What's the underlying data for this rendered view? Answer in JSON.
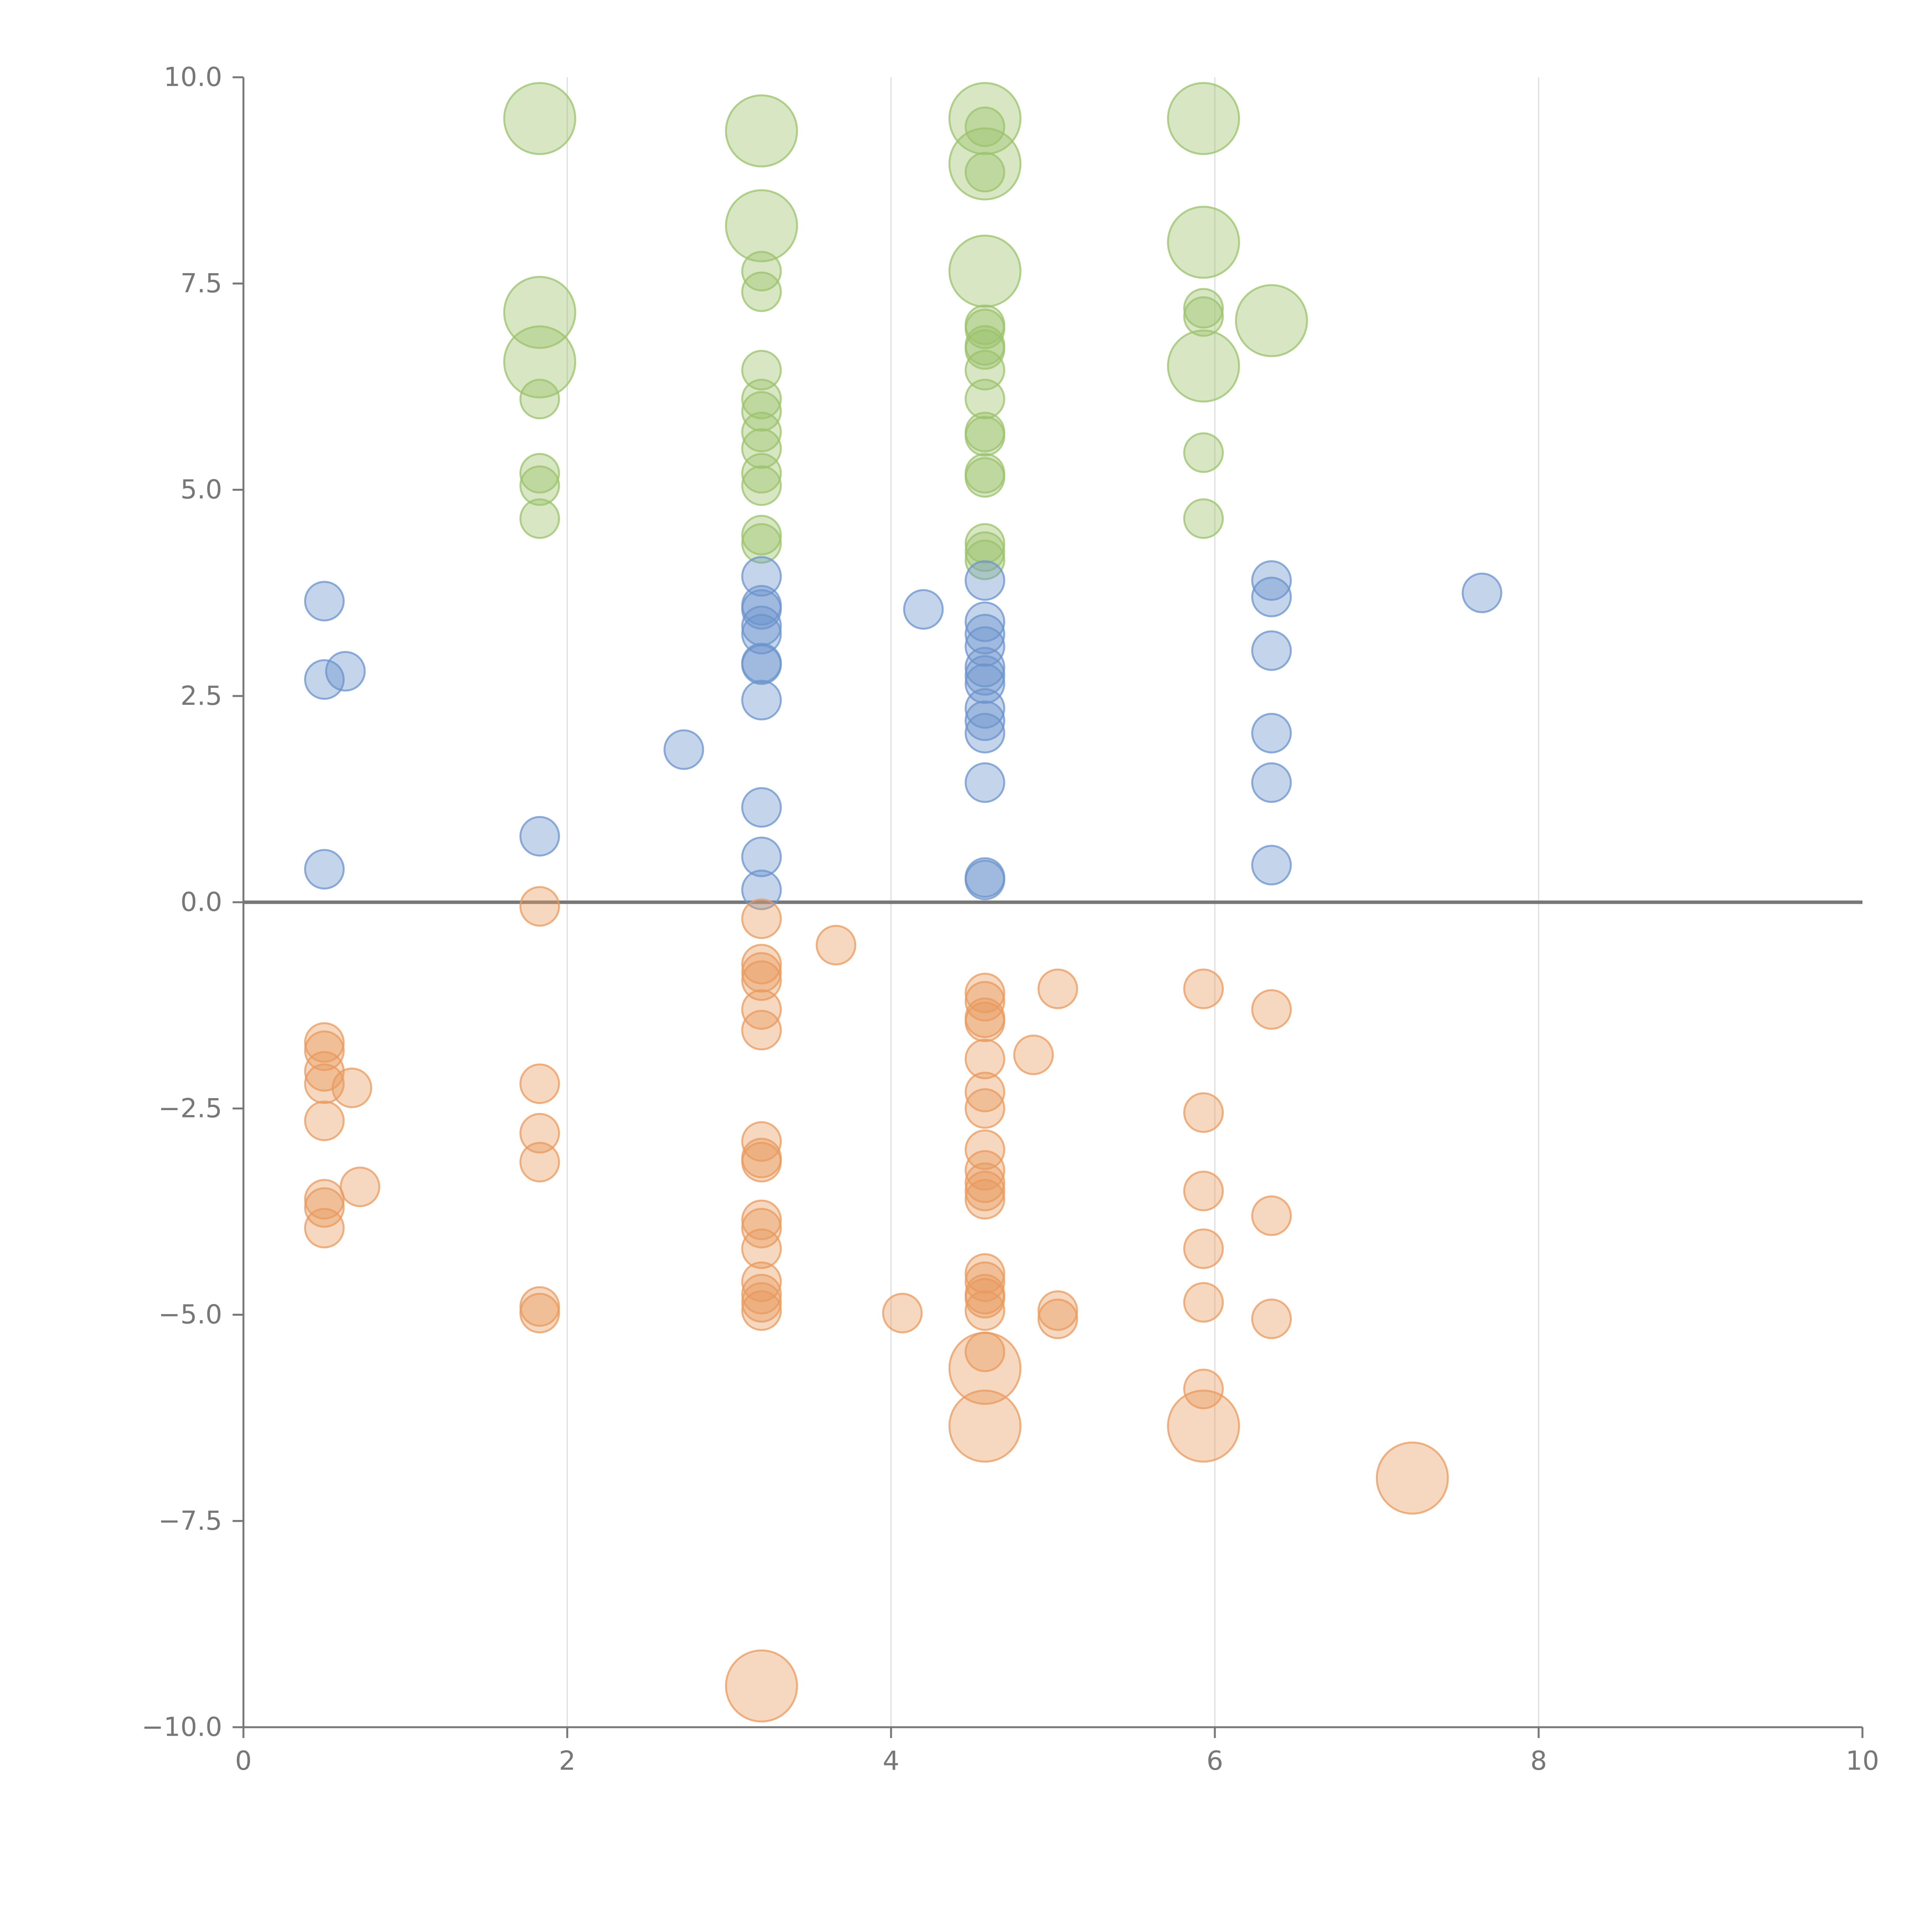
{
  "colors": {
    "green": "#9bc26b",
    "blue": "#6b93cc",
    "orange": "#e99a5e",
    "axis": "#777777",
    "grid": "#dddddd"
  },
  "chart_data": {
    "type": "scatter",
    "title": "",
    "xlabel": "",
    "ylabel": "",
    "xlim": [
      0,
      10
    ],
    "ylim": [
      -10,
      10
    ],
    "xticks": [
      0,
      2,
      4,
      6,
      8,
      10
    ],
    "yticks": [
      10.0,
      7.5,
      5.0,
      2.5,
      0.0,
      -2.5,
      -5.0,
      -7.5,
      -10.0
    ],
    "xtick_labels": [
      "0",
      "2",
      "4",
      "6",
      "8",
      "10"
    ],
    "ytick_labels": [
      "10.0",
      "7.5",
      "5.0",
      "2.5",
      "0.0",
      "−2.5",
      "−5.0",
      "−7.5",
      "−10.0"
    ],
    "grid_x": [
      2,
      4,
      6,
      8
    ],
    "zero_line": 0,
    "series": [
      {
        "name": "green",
        "color_key": "green",
        "points": [
          {
            "x": 1.83,
            "y": 9.5,
            "size": "large"
          },
          {
            "x": 1.83,
            "y": 7.15,
            "size": "large"
          },
          {
            "x": 1.83,
            "y": 6.55,
            "size": "large"
          },
          {
            "x": 1.83,
            "y": 6.1,
            "size": "small"
          },
          {
            "x": 1.83,
            "y": 5.2,
            "size": "small"
          },
          {
            "x": 1.83,
            "y": 5.05,
            "size": "small"
          },
          {
            "x": 1.83,
            "y": 4.65,
            "size": "small"
          },
          {
            "x": 3.2,
            "y": 9.35,
            "size": "large"
          },
          {
            "x": 3.2,
            "y": 8.2,
            "size": "large"
          },
          {
            "x": 3.2,
            "y": 7.65,
            "size": "small"
          },
          {
            "x": 3.2,
            "y": 7.4,
            "size": "small"
          },
          {
            "x": 3.2,
            "y": 6.45,
            "size": "small"
          },
          {
            "x": 3.2,
            "y": 6.1,
            "size": "small"
          },
          {
            "x": 3.2,
            "y": 5.95,
            "size": "small"
          },
          {
            "x": 3.2,
            "y": 5.7,
            "size": "small"
          },
          {
            "x": 3.2,
            "y": 5.5,
            "size": "small"
          },
          {
            "x": 3.2,
            "y": 5.2,
            "size": "small"
          },
          {
            "x": 3.2,
            "y": 5.05,
            "size": "small"
          },
          {
            "x": 3.2,
            "y": 4.45,
            "size": "small"
          },
          {
            "x": 3.2,
            "y": 4.35,
            "size": "small"
          },
          {
            "x": 4.58,
            "y": 9.5,
            "size": "large"
          },
          {
            "x": 4.58,
            "y": 9.4,
            "size": "small"
          },
          {
            "x": 4.58,
            "y": 8.95,
            "size": "large"
          },
          {
            "x": 4.58,
            "y": 8.85,
            "size": "small"
          },
          {
            "x": 4.58,
            "y": 7.65,
            "size": "large"
          },
          {
            "x": 4.58,
            "y": 7.0,
            "size": "small"
          },
          {
            "x": 4.58,
            "y": 6.95,
            "size": "small"
          },
          {
            "x": 4.58,
            "y": 6.75,
            "size": "small"
          },
          {
            "x": 4.58,
            "y": 6.7,
            "size": "small"
          },
          {
            "x": 4.58,
            "y": 6.45,
            "size": "small"
          },
          {
            "x": 4.58,
            "y": 6.1,
            "size": "small"
          },
          {
            "x": 4.58,
            "y": 5.7,
            "size": "small"
          },
          {
            "x": 4.58,
            "y": 5.65,
            "size": "small"
          },
          {
            "x": 4.58,
            "y": 5.2,
            "size": "small"
          },
          {
            "x": 4.58,
            "y": 5.15,
            "size": "small"
          },
          {
            "x": 4.58,
            "y": 4.35,
            "size": "small"
          },
          {
            "x": 4.58,
            "y": 4.25,
            "size": "small"
          },
          {
            "x": 4.58,
            "y": 4.15,
            "size": "small"
          },
          {
            "x": 5.93,
            "y": 9.5,
            "size": "large"
          },
          {
            "x": 5.93,
            "y": 8.0,
            "size": "large"
          },
          {
            "x": 5.93,
            "y": 7.2,
            "size": "small"
          },
          {
            "x": 5.93,
            "y": 7.1,
            "size": "small"
          },
          {
            "x": 5.93,
            "y": 6.5,
            "size": "large"
          },
          {
            "x": 5.93,
            "y": 5.45,
            "size": "small"
          },
          {
            "x": 5.93,
            "y": 4.65,
            "size": "small"
          },
          {
            "x": 6.35,
            "y": 7.05,
            "size": "large"
          }
        ]
      },
      {
        "name": "blue",
        "color_key": "blue",
        "points": [
          {
            "x": 0.5,
            "y": 3.65,
            "size": "small"
          },
          {
            "x": 0.5,
            "y": 2.7,
            "size": "small"
          },
          {
            "x": 0.63,
            "y": 2.8,
            "size": "small"
          },
          {
            "x": 0.5,
            "y": 0.4,
            "size": "small"
          },
          {
            "x": 1.83,
            "y": 0.8,
            "size": "small"
          },
          {
            "x": 2.72,
            "y": 1.85,
            "size": "small"
          },
          {
            "x": 3.2,
            "y": 3.95,
            "size": "small"
          },
          {
            "x": 3.2,
            "y": 3.6,
            "size": "small"
          },
          {
            "x": 3.2,
            "y": 3.55,
            "size": "small"
          },
          {
            "x": 3.2,
            "y": 3.35,
            "size": "small"
          },
          {
            "x": 3.2,
            "y": 3.25,
            "size": "small"
          },
          {
            "x": 3.2,
            "y": 2.9,
            "size": "small"
          },
          {
            "x": 3.2,
            "y": 2.88,
            "size": "small"
          },
          {
            "x": 3.2,
            "y": 2.45,
            "size": "small"
          },
          {
            "x": 3.2,
            "y": 1.15,
            "size": "small"
          },
          {
            "x": 3.2,
            "y": 0.55,
            "size": "small"
          },
          {
            "x": 3.2,
            "y": 0.15,
            "size": "small"
          },
          {
            "x": 4.2,
            "y": 3.55,
            "size": "small"
          },
          {
            "x": 4.58,
            "y": 3.9,
            "size": "small"
          },
          {
            "x": 4.58,
            "y": 3.4,
            "size": "small"
          },
          {
            "x": 4.58,
            "y": 3.25,
            "size": "small"
          },
          {
            "x": 4.58,
            "y": 3.1,
            "size": "small"
          },
          {
            "x": 4.58,
            "y": 2.85,
            "size": "small"
          },
          {
            "x": 4.58,
            "y": 2.75,
            "size": "small"
          },
          {
            "x": 4.58,
            "y": 2.65,
            "size": "small"
          },
          {
            "x": 4.58,
            "y": 2.35,
            "size": "small"
          },
          {
            "x": 4.58,
            "y": 2.2,
            "size": "small"
          },
          {
            "x": 4.58,
            "y": 2.05,
            "size": "small"
          },
          {
            "x": 4.58,
            "y": 1.45,
            "size": "small"
          },
          {
            "x": 4.58,
            "y": 0.3,
            "size": "small"
          },
          {
            "x": 4.58,
            "y": 0.27,
            "size": "small"
          },
          {
            "x": 6.35,
            "y": 3.9,
            "size": "small"
          },
          {
            "x": 6.35,
            "y": 3.7,
            "size": "small"
          },
          {
            "x": 6.35,
            "y": 3.05,
            "size": "small"
          },
          {
            "x": 6.35,
            "y": 2.05,
            "size": "small"
          },
          {
            "x": 6.35,
            "y": 1.45,
            "size": "small"
          },
          {
            "x": 6.35,
            "y": 0.45,
            "size": "small"
          },
          {
            "x": 7.65,
            "y": 3.75,
            "size": "small"
          }
        ]
      },
      {
        "name": "orange",
        "color_key": "orange",
        "points": [
          {
            "x": 0.5,
            "y": -1.7,
            "size": "small"
          },
          {
            "x": 0.5,
            "y": -1.8,
            "size": "small"
          },
          {
            "x": 0.5,
            "y": -2.05,
            "size": "small"
          },
          {
            "x": 0.5,
            "y": -2.2,
            "size": "small"
          },
          {
            "x": 0.67,
            "y": -2.25,
            "size": "small"
          },
          {
            "x": 0.5,
            "y": -2.65,
            "size": "small"
          },
          {
            "x": 0.5,
            "y": -3.6,
            "size": "small"
          },
          {
            "x": 0.5,
            "y": -3.7,
            "size": "small"
          },
          {
            "x": 0.72,
            "y": -3.45,
            "size": "small"
          },
          {
            "x": 0.5,
            "y": -3.95,
            "size": "small"
          },
          {
            "x": 1.83,
            "y": -0.05,
            "size": "small"
          },
          {
            "x": 1.83,
            "y": -2.2,
            "size": "small"
          },
          {
            "x": 1.83,
            "y": -2.8,
            "size": "small"
          },
          {
            "x": 1.83,
            "y": -3.15,
            "size": "small"
          },
          {
            "x": 1.83,
            "y": -4.9,
            "size": "small"
          },
          {
            "x": 1.83,
            "y": -4.98,
            "size": "small"
          },
          {
            "x": 3.2,
            "y": -0.2,
            "size": "small"
          },
          {
            "x": 3.2,
            "y": -0.75,
            "size": "small"
          },
          {
            "x": 3.2,
            "y": -0.85,
            "size": "small"
          },
          {
            "x": 3.2,
            "y": -0.95,
            "size": "small"
          },
          {
            "x": 3.2,
            "y": -1.3,
            "size": "small"
          },
          {
            "x": 3.2,
            "y": -1.55,
            "size": "small"
          },
          {
            "x": 3.2,
            "y": -2.9,
            "size": "small"
          },
          {
            "x": 3.2,
            "y": -3.1,
            "size": "small"
          },
          {
            "x": 3.2,
            "y": -3.15,
            "size": "small"
          },
          {
            "x": 3.2,
            "y": -3.85,
            "size": "small"
          },
          {
            "x": 3.2,
            "y": -3.95,
            "size": "small"
          },
          {
            "x": 3.2,
            "y": -4.2,
            "size": "small"
          },
          {
            "x": 3.2,
            "y": -4.6,
            "size": "small"
          },
          {
            "x": 3.2,
            "y": -4.75,
            "size": "small"
          },
          {
            "x": 3.2,
            "y": -4.85,
            "size": "small"
          },
          {
            "x": 3.2,
            "y": -4.95,
            "size": "small"
          },
          {
            "x": 3.2,
            "y": -9.5,
            "size": "large"
          },
          {
            "x": 3.66,
            "y": -0.52,
            "size": "small"
          },
          {
            "x": 4.07,
            "y": -4.98,
            "size": "small"
          },
          {
            "x": 4.58,
            "y": -1.1,
            "size": "small"
          },
          {
            "x": 4.58,
            "y": -1.2,
            "size": "small"
          },
          {
            "x": 4.58,
            "y": -1.4,
            "size": "small"
          },
          {
            "x": 4.58,
            "y": -1.45,
            "size": "small"
          },
          {
            "x": 4.58,
            "y": -1.9,
            "size": "small"
          },
          {
            "x": 4.58,
            "y": -2.3,
            "size": "small"
          },
          {
            "x": 4.58,
            "y": -2.5,
            "size": "small"
          },
          {
            "x": 4.58,
            "y": -3.0,
            "size": "small"
          },
          {
            "x": 4.58,
            "y": -3.25,
            "size": "small"
          },
          {
            "x": 4.58,
            "y": -3.4,
            "size": "small"
          },
          {
            "x": 4.58,
            "y": -3.5,
            "size": "small"
          },
          {
            "x": 4.58,
            "y": -3.6,
            "size": "small"
          },
          {
            "x": 4.58,
            "y": -4.5,
            "size": "small"
          },
          {
            "x": 4.58,
            "y": -4.6,
            "size": "small"
          },
          {
            "x": 4.58,
            "y": -4.75,
            "size": "small"
          },
          {
            "x": 4.58,
            "y": -4.8,
            "size": "small"
          },
          {
            "x": 4.58,
            "y": -4.95,
            "size": "small"
          },
          {
            "x": 4.58,
            "y": -5.45,
            "size": "small"
          },
          {
            "x": 4.58,
            "y": -5.65,
            "size": "large"
          },
          {
            "x": 4.58,
            "y": -6.35,
            "size": "large"
          },
          {
            "x": 4.88,
            "y": -1.85,
            "size": "small"
          },
          {
            "x": 5.03,
            "y": -1.05,
            "size": "small"
          },
          {
            "x": 5.03,
            "y": -4.95,
            "size": "small"
          },
          {
            "x": 5.03,
            "y": -5.05,
            "size": "small"
          },
          {
            "x": 5.93,
            "y": -1.05,
            "size": "small"
          },
          {
            "x": 5.93,
            "y": -2.55,
            "size": "small"
          },
          {
            "x": 5.93,
            "y": -3.5,
            "size": "small"
          },
          {
            "x": 5.93,
            "y": -4.2,
            "size": "small"
          },
          {
            "x": 5.93,
            "y": -4.85,
            "size": "small"
          },
          {
            "x": 5.93,
            "y": -5.9,
            "size": "small"
          },
          {
            "x": 5.93,
            "y": -6.35,
            "size": "large"
          },
          {
            "x": 6.35,
            "y": -1.3,
            "size": "small"
          },
          {
            "x": 6.35,
            "y": -3.8,
            "size": "small"
          },
          {
            "x": 6.35,
            "y": -5.05,
            "size": "small"
          },
          {
            "x": 7.22,
            "y": -6.98,
            "size": "large"
          }
        ]
      }
    ]
  }
}
